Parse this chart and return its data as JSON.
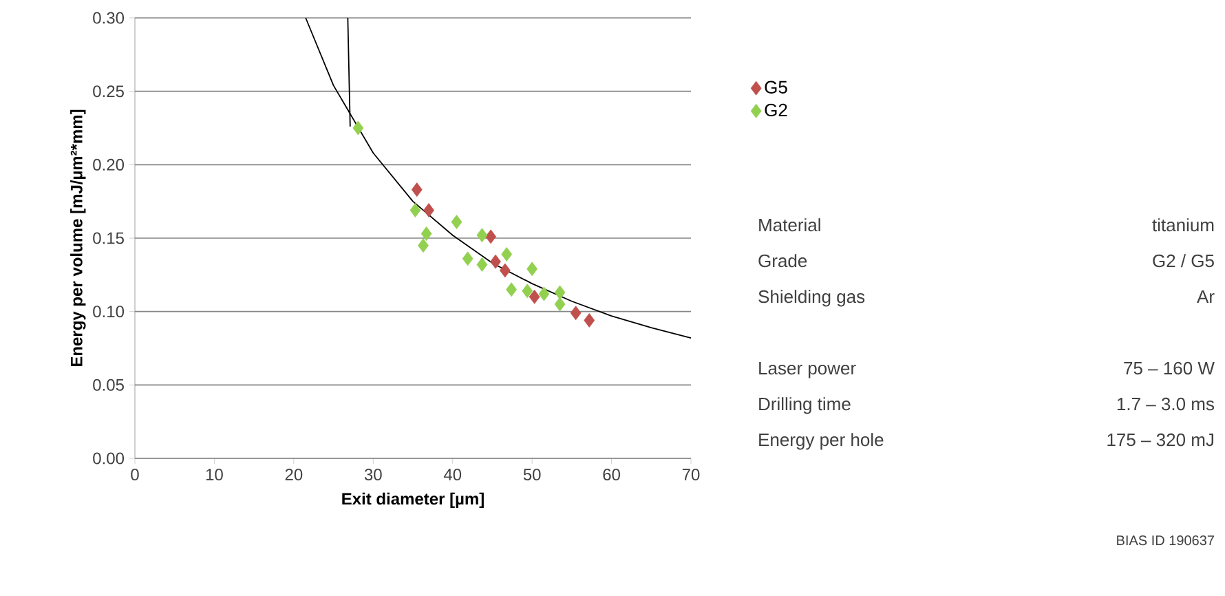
{
  "chart_data": {
    "type": "scatter",
    "xlabel": "Exit diameter [µm]",
    "ylabel": "Energy per volume [mJ/µm²*mm]",
    "xlim": [
      0,
      70
    ],
    "xticks": [
      0,
      10,
      20,
      30,
      40,
      50,
      60,
      70
    ],
    "ylim": [
      0,
      0.3
    ],
    "yticks": [
      {
        "value": 0,
        "label": "0.00"
      },
      {
        "value": 0.05,
        "label": "0.05"
      },
      {
        "value": 0.1,
        "label": "0.10"
      },
      {
        "value": 0.15,
        "label": "0.15"
      },
      {
        "value": 0.2,
        "label": "0.20"
      },
      {
        "value": 0.25,
        "label": "0.25"
      },
      {
        "value": 0.3,
        "label": "0.30"
      }
    ],
    "grid": "y",
    "legend": "right",
    "marker": "diamond",
    "series": [
      {
        "name": "G5",
        "color": "#c0504d",
        "x": [
          35.5,
          37.0,
          44.8,
          45.4,
          46.6,
          50.3,
          55.5,
          57.2
        ],
        "values": [
          0.183,
          0.169,
          0.151,
          0.134,
          0.128,
          0.11,
          0.099,
          0.094
        ]
      },
      {
        "name": "G2",
        "color": "#92d050",
        "x": [
          28.1,
          35.3,
          36.7,
          36.3,
          40.5,
          43.7,
          41.9,
          43.7,
          46.8,
          50.0,
          47.4,
          49.4,
          51.5,
          53.5,
          53.5
        ],
        "values": [
          0.225,
          0.169,
          0.153,
          0.145,
          0.161,
          0.152,
          0.136,
          0.132,
          0.139,
          0.129,
          0.115,
          0.114,
          0.112,
          0.113,
          0.105
        ]
      },
      {
        "type": "line",
        "marker": "none",
        "color": "#000000",
        "x": [
          21.5,
          25,
          30,
          35,
          40,
          45,
          50,
          55,
          60,
          65,
          70
        ],
        "values": [
          0.3,
          0.254,
          0.208,
          0.175,
          0.152,
          0.133,
          0.119,
          0.107,
          0.097,
          0.089,
          0.082
        ]
      },
      {
        "type": "line",
        "marker": "none",
        "color": "#000000",
        "x": [
          26.8,
          27.1
        ],
        "values": [
          0.3,
          0.226
        ]
      }
    ],
    "annotations": [
      "Material",
      "titanium",
      "Grade",
      "G2 / G5",
      "Shielding gas",
      "Ar",
      "Laser power",
      "75 – 160 W",
      "Drilling time",
      "1.7 – 3.0 ms",
      "Energy per hole",
      "175 – 320 mJ",
      "BIAS ID 190637"
    ]
  }
}
